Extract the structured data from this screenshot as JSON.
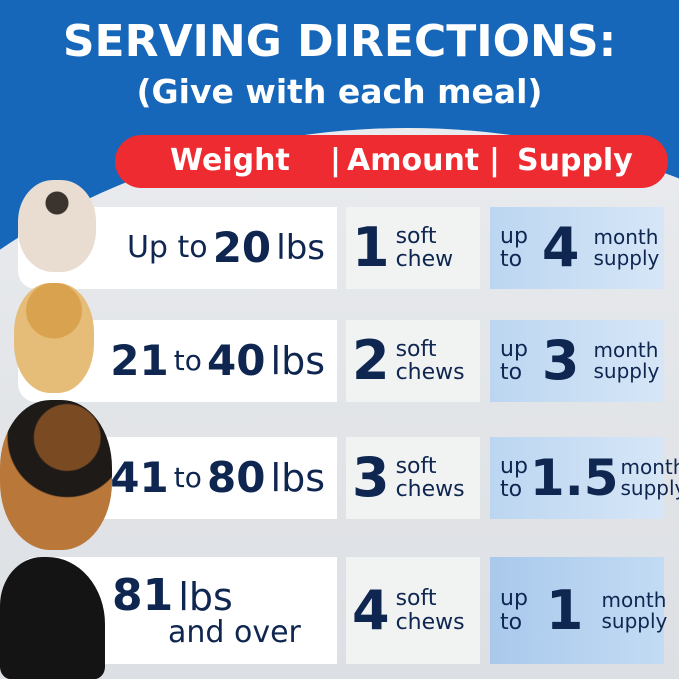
{
  "title": "SERVING DIRECTIONS:",
  "subtitle": "(Give with each meal)",
  "header": {
    "weight": "Weight",
    "sep1": "|",
    "amount": "Amount",
    "sep2": "|",
    "supply": "Supply"
  },
  "rows": [
    {
      "weight_pre": "Up to",
      "weight_num": "20",
      "weight_unit": "lbs",
      "amount": "1",
      "amount_l1": "soft",
      "amount_l2": "chew",
      "up": "up",
      "to": "to",
      "supply": "4",
      "supply_l1": "month",
      "supply_l2": "supply",
      "dog": "french-bulldog"
    },
    {
      "weight_a": "21",
      "weight_to": "to",
      "weight_b": "40",
      "weight_unit": "lbs",
      "amount": "2",
      "amount_l1": "soft",
      "amount_l2": "chews",
      "up": "up",
      "to": "to",
      "supply": "3",
      "supply_l1": "month",
      "supply_l2": "supply",
      "dog": "golden-retriever-puppy"
    },
    {
      "weight_a": "41",
      "weight_to": "to",
      "weight_b": "80",
      "weight_unit": "lbs",
      "amount": "3",
      "amount_l1": "soft",
      "amount_l2": "chews",
      "up": "up",
      "to": "to",
      "supply": "1.5",
      "supply_l1": "month",
      "supply_l2": "supply",
      "dog": "german-shepherd"
    },
    {
      "weight_num": "81",
      "weight_unit": "lbs",
      "weight_l2": "and over",
      "amount": "4",
      "amount_l1": "soft",
      "amount_l2": "chews",
      "up": "up",
      "to": "to",
      "supply": "1",
      "supply_l1": "month",
      "supply_l2": "supply",
      "dog": "great-dane"
    }
  ],
  "colors": {
    "blue": "#1667b9",
    "red": "#ee2b30",
    "navy": "#0e2650",
    "light_blue": "#c8ddf4"
  }
}
